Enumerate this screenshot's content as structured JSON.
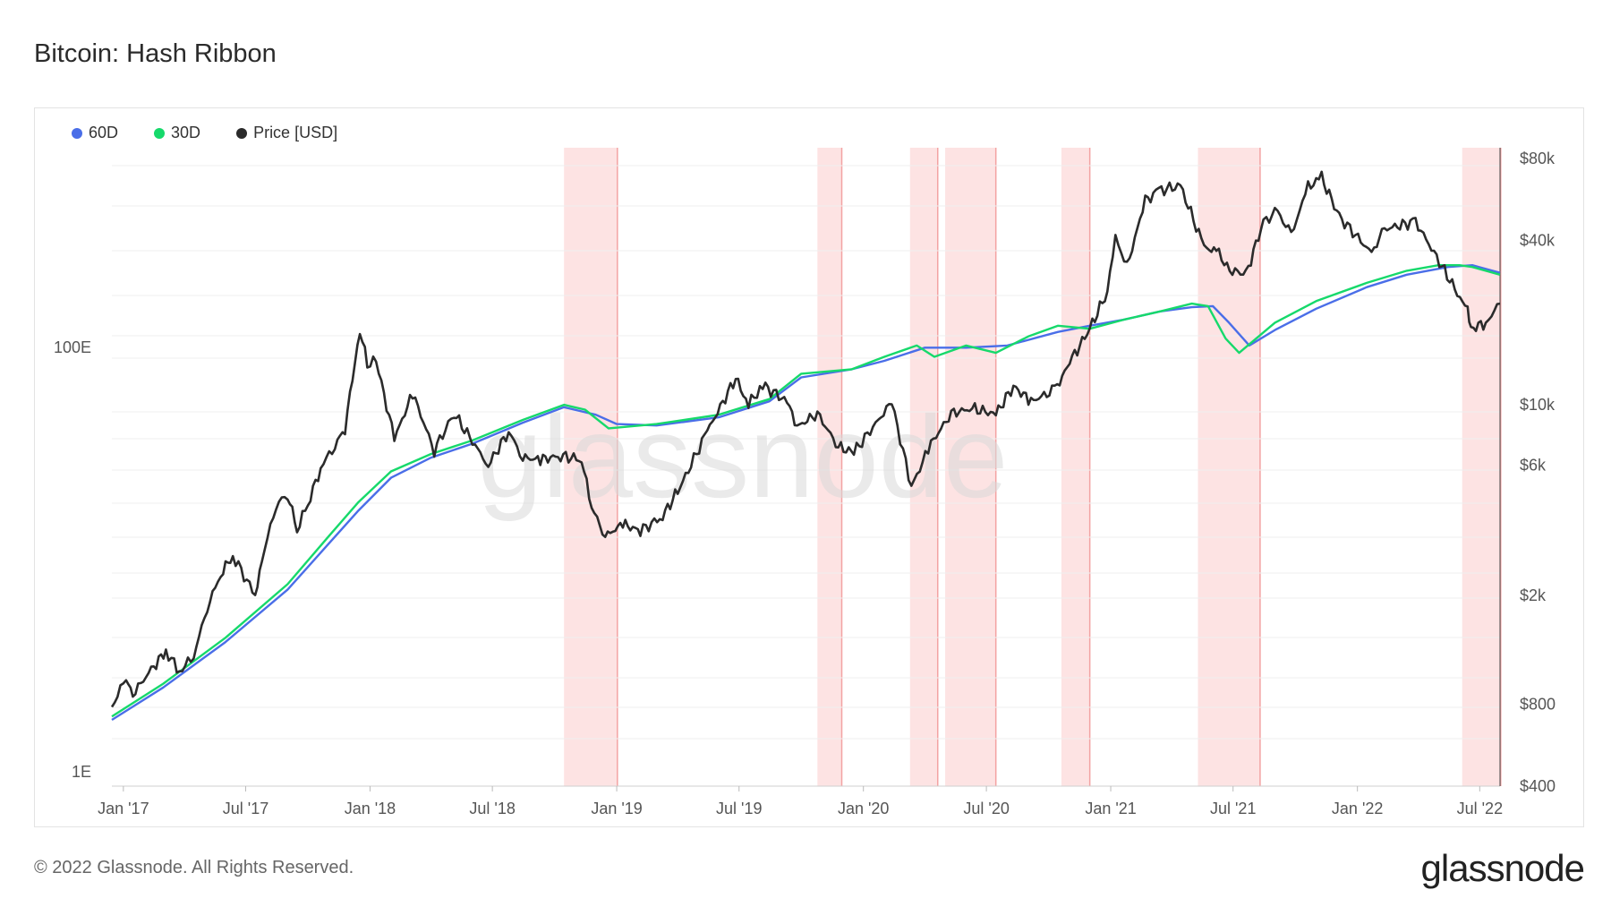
{
  "title": "Bitcoin: Hash Ribbon",
  "watermark": "glassnode",
  "legend": [
    {
      "label": "60D",
      "color": "#4a6ee8"
    },
    {
      "label": "30D",
      "color": "#16d96b"
    },
    {
      "label": "Price [USD]",
      "color": "#2b2b2b"
    }
  ],
  "footer": "© 2022 Glassnode. All Rights Reserved.",
  "brand": "glassnode",
  "chart_data": {
    "type": "line",
    "title": "Bitcoin: Hash Ribbon",
    "x_ticks": [
      "Jan '17",
      "Jul '17",
      "Jan '18",
      "Jul '18",
      "Jan '19",
      "Jul '19",
      "Jan '20",
      "Jul '20",
      "Jan '21",
      "Jul '21",
      "Jan '22",
      "Jul '22"
    ],
    "left_axis": {
      "ticks": [
        "100E",
        "1E"
      ],
      "scale": "log"
    },
    "right_axis": {
      "ticks": [
        "$80k",
        "$40k",
        "$10k",
        "$6k",
        "$2k",
        "$800",
        "$400"
      ],
      "scale": "log",
      "range": [
        400,
        80000
      ]
    },
    "grid": true,
    "legend_position": "top-left",
    "capitulation_periods": [
      [
        "2018-10-15",
        "2019-01-02"
      ],
      [
        "2019-10-25",
        "2019-11-30"
      ],
      [
        "2020-03-10",
        "2020-04-20"
      ],
      [
        "2020-05-01",
        "2020-07-15"
      ],
      [
        "2020-10-20",
        "2020-12-01"
      ],
      [
        "2021-05-10",
        "2021-08-10"
      ],
      [
        "2022-06-05",
        "2022-08-01"
      ]
    ],
    "series": [
      {
        "name": "Price [USD]",
        "color": "#2b2b2b",
        "axis": "right",
        "x": [
          "2016-12-15",
          "2017-01-05",
          "2017-01-15",
          "2017-02-15",
          "2017-03-05",
          "2017-03-25",
          "2017-04-15",
          "2017-05-05",
          "2017-05-25",
          "2017-06-12",
          "2017-07-15",
          "2017-07-25",
          "2017-08-15",
          "2017-09-01",
          "2017-09-15",
          "2017-10-01",
          "2017-10-20",
          "2017-11-10",
          "2017-11-25",
          "2017-12-17",
          "2017-12-28",
          "2018-01-10",
          "2018-02-06",
          "2018-03-05",
          "2018-04-06",
          "2018-05-05",
          "2018-06-25",
          "2018-07-25",
          "2018-08-15",
          "2018-09-10",
          "2018-10-10",
          "2018-11-10",
          "2018-11-25",
          "2018-12-15",
          "2019-01-10",
          "2019-02-05",
          "2019-03-10",
          "2019-04-05",
          "2019-05-15",
          "2019-06-26",
          "2019-07-15",
          "2019-08-05",
          "2019-09-10",
          "2019-09-25",
          "2019-10-25",
          "2019-11-25",
          "2019-12-18",
          "2020-02-12",
          "2020-03-12",
          "2020-04-10",
          "2020-05-10",
          "2020-06-10",
          "2020-07-15",
          "2020-08-10",
          "2020-09-05",
          "2020-10-10",
          "2020-11-05",
          "2020-12-01",
          "2020-12-27",
          "2021-01-08",
          "2021-01-25",
          "2021-02-21",
          "2021-03-13",
          "2021-04-14",
          "2021-05-19",
          "2021-06-10",
          "2021-06-22",
          "2021-07-20",
          "2021-08-15",
          "2021-09-05",
          "2021-09-25",
          "2021-10-20",
          "2021-11-09",
          "2021-12-05",
          "2022-01-22",
          "2022-02-10",
          "2022-03-28",
          "2022-05-10",
          "2022-06-13",
          "2022-06-18",
          "2022-07-10",
          "2022-07-31"
        ],
        "values": [
          780,
          1000,
          870,
          1100,
          1250,
          1050,
          1200,
          1800,
          2400,
          2800,
          2000,
          2700,
          4300,
          4700,
          3500,
          4300,
          5900,
          7100,
          8200,
          19000,
          14000,
          14500,
          7500,
          11000,
          6800,
          9300,
          6000,
          8000,
          6400,
          6300,
          6500,
          6300,
          4200,
          3300,
          3650,
          3450,
          3900,
          5000,
          8000,
          12500,
          10000,
          11800,
          10300,
          8300,
          9300,
          7000,
          6700,
          10200,
          5000,
          7200,
          9300,
          9700,
          9250,
          11700,
          10300,
          11300,
          14800,
          19000,
          26000,
          41000,
          32000,
          56000,
          61000,
          63500,
          38000,
          36000,
          31500,
          30000,
          47000,
          51000,
          42000,
          63000,
          68000,
          49000,
          36000,
          44000,
          47000,
          31000,
          22000,
          19000,
          20000,
          23500
        ]
      },
      {
        "name": "30D",
        "color": "#16d96b",
        "axis": "left",
        "x": [
          "2016-12-15",
          "2017-03-01",
          "2017-06-01",
          "2017-09-01",
          "2017-11-01",
          "2017-12-15",
          "2018-02-01",
          "2018-04-01",
          "2018-06-01",
          "2018-08-15",
          "2018-10-15",
          "2018-11-15",
          "2018-12-20",
          "2019-03-01",
          "2019-06-01",
          "2019-08-15",
          "2019-10-01",
          "2019-12-15",
          "2020-02-01",
          "2020-03-20",
          "2020-04-15",
          "2020-06-01",
          "2020-07-15",
          "2020-09-01",
          "2020-10-15",
          "2020-12-01",
          "2021-01-20",
          "2021-03-15",
          "2021-05-01",
          "2021-05-25",
          "2021-06-20",
          "2021-07-10",
          "2021-09-01",
          "2021-11-01",
          "2022-01-15",
          "2022-03-15",
          "2022-05-01",
          "2022-06-01",
          "2022-06-20",
          "2022-07-31"
        ],
        "values": [
          720,
          950,
          1400,
          2200,
          3300,
          4400,
          5700,
          6600,
          7400,
          8800,
          10000,
          9600,
          8200,
          8500,
          9200,
          10500,
          13000,
          13500,
          15000,
          16500,
          15000,
          16500,
          15500,
          17800,
          19500,
          19000,
          20500,
          22000,
          23500,
          23000,
          17500,
          15500,
          20000,
          24000,
          28000,
          31000,
          32500,
          32500,
          32000,
          30000
        ]
      },
      {
        "name": "60D",
        "color": "#4a6ee8",
        "axis": "left",
        "x": [
          "2016-12-15",
          "2017-03-01",
          "2017-06-01",
          "2017-09-01",
          "2017-11-01",
          "2017-12-15",
          "2018-02-01",
          "2018-04-01",
          "2018-06-01",
          "2018-08-15",
          "2018-10-15",
          "2018-12-01",
          "2019-01-01",
          "2019-03-01",
          "2019-06-01",
          "2019-08-15",
          "2019-10-01",
          "2019-12-15",
          "2020-02-01",
          "2020-04-01",
          "2020-06-01",
          "2020-08-01",
          "2020-10-15",
          "2020-12-01",
          "2021-01-20",
          "2021-03-15",
          "2021-05-01",
          "2021-06-01",
          "2021-06-25",
          "2021-07-25",
          "2021-09-01",
          "2021-11-01",
          "2022-01-15",
          "2022-03-15",
          "2022-05-15",
          "2022-06-20",
          "2022-07-31"
        ],
        "values": [
          700,
          920,
          1350,
          2100,
          3100,
          4100,
          5400,
          6400,
          7200,
          8600,
          9800,
          9200,
          8500,
          8400,
          9000,
          10300,
          12600,
          13500,
          14500,
          16200,
          16200,
          16500,
          18500,
          19500,
          20500,
          22000,
          22800,
          23000,
          20000,
          16500,
          18800,
          22500,
          27000,
          30000,
          32000,
          32500,
          30500
        ]
      }
    ]
  }
}
